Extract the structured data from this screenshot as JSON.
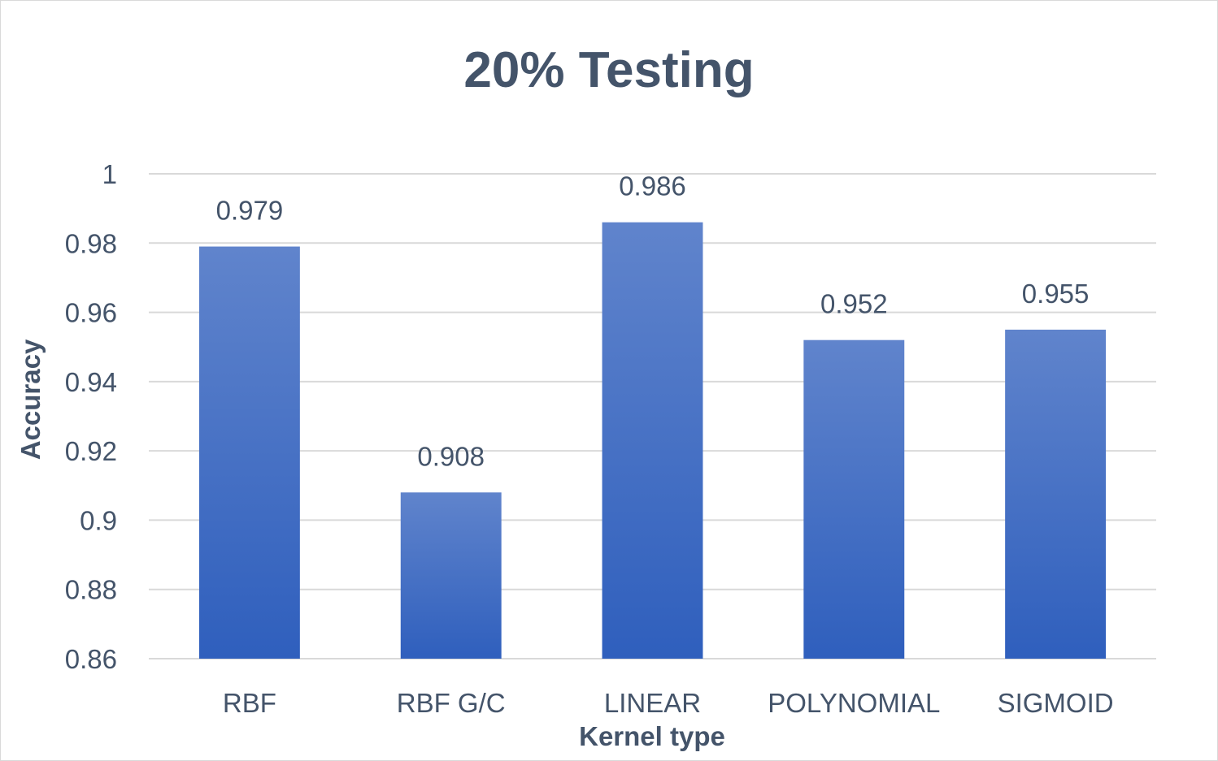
{
  "chart_data": {
    "type": "bar",
    "title": "20% Testing",
    "xlabel": "Kernel type",
    "ylabel": "Accuracy",
    "categories": [
      "RBF",
      "RBF G/C",
      "LINEAR",
      "POLYNOMIAL",
      "SIGMOID"
    ],
    "values": [
      0.979,
      0.908,
      0.986,
      0.952,
      0.955
    ],
    "value_labels": [
      "0.979",
      "0.908",
      "0.986",
      "0.952",
      "0.955"
    ],
    "ylim": [
      0.86,
      1
    ],
    "yticks": [
      0.86,
      0.88,
      0.9,
      0.92,
      0.94,
      0.96,
      0.98,
      1
    ],
    "ytick_labels": [
      "0.86",
      "0.88",
      "0.9",
      "0.92",
      "0.94",
      "0.96",
      "0.98",
      "1"
    ],
    "grid": true,
    "legend": "none",
    "bar_color_top": "#6084cc",
    "bar_color_bottom": "#2f5fbd",
    "text_color": "#44546a",
    "grid_color": "#d9d9d9"
  }
}
